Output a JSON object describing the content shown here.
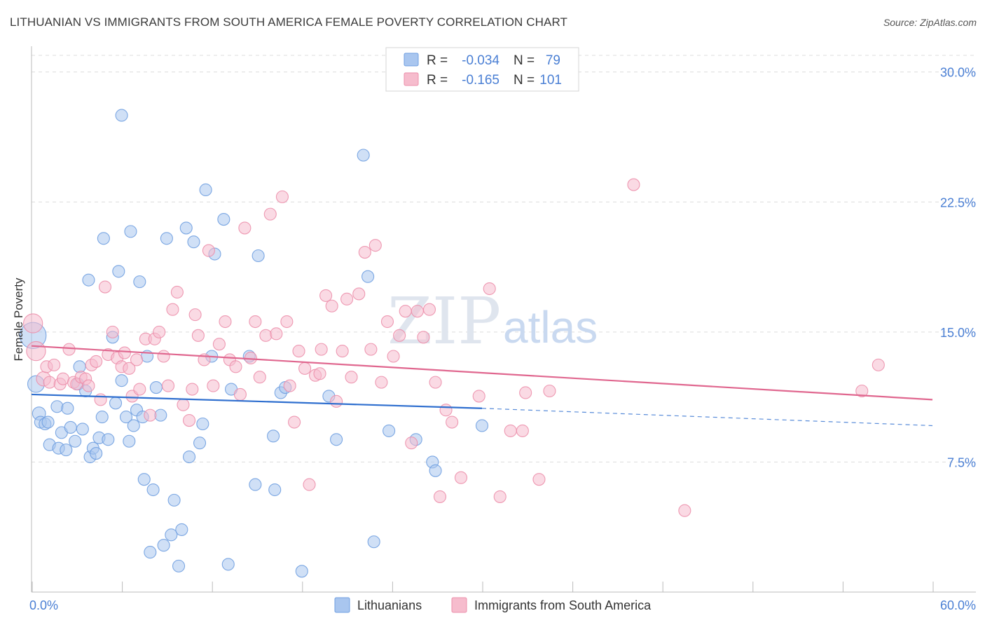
{
  "header": {
    "title": "LITHUANIAN VS IMMIGRANTS FROM SOUTH AMERICA FEMALE POVERTY CORRELATION CHART",
    "source": "Source: ZipAtlas.com"
  },
  "watermark": {
    "zip": "ZIP",
    "atlas": "atlas"
  },
  "colors": {
    "blue_fill": "#a9c6ef",
    "blue_stroke": "#6f9fe0",
    "blue_line": "#2f6fcf",
    "pink_fill": "#f6bccd",
    "pink_stroke": "#ec8fab",
    "pink_line": "#e0678f",
    "grid": "#dcdcdc",
    "tick_label": "#4a7fd4"
  },
  "legend": {
    "rows": [
      {
        "r_label": "R =",
        "r_value": "-0.034",
        "n_label": "N =",
        "n_value": "79"
      },
      {
        "r_label": "R =",
        "r_value": "-0.165",
        "n_label": "N =",
        "n_value": "101"
      }
    ]
  },
  "bottom_legend": {
    "items": [
      {
        "label": "Lithuanians"
      },
      {
        "label": "Immigrants from South America"
      }
    ]
  },
  "chart_data": {
    "type": "scatter",
    "title": "LITHUANIAN VS IMMIGRANTS FROM SOUTH AMERICA FEMALE POVERTY CORRELATION CHART",
    "xlabel": "",
    "ylabel": "Female Poverty",
    "xlim": [
      0,
      60
    ],
    "ylim": [
      0,
      31
    ],
    "x_tick_labels": [
      "0.0%",
      "60.0%"
    ],
    "y_ticks": [
      7.5,
      15.0,
      22.5,
      30.0
    ],
    "y_tick_labels": [
      "7.5%",
      "15.0%",
      "22.5%",
      "30.0%"
    ],
    "grid": "horizontal dashed",
    "legend_position": "top-center",
    "series": [
      {
        "name": "Lithuanians",
        "r": -0.034,
        "n": 79,
        "trend": {
          "x0": 0,
          "y0": 11.4,
          "x1": 30,
          "y1": 10.6,
          "dashed_to_x": 60,
          "dashed_to_y": 9.6
        },
        "points": [
          [
            0.1,
            14.8,
            2.2
          ],
          [
            0.3,
            12.0,
            1.4
          ],
          [
            0.5,
            10.3,
            1.1
          ],
          [
            0.6,
            9.8,
            1
          ],
          [
            0.9,
            9.7,
            1
          ],
          [
            1.1,
            9.8,
            1
          ],
          [
            1.2,
            8.5,
            1
          ],
          [
            1.7,
            10.7,
            1
          ],
          [
            1.8,
            8.3,
            1
          ],
          [
            2.0,
            9.2,
            1
          ],
          [
            2.3,
            8.2,
            1
          ],
          [
            2.4,
            10.6,
            1
          ],
          [
            2.6,
            9.5,
            1
          ],
          [
            2.9,
            8.7,
            1
          ],
          [
            3.1,
            12.0,
            1
          ],
          [
            3.2,
            13.0,
            1
          ],
          [
            3.4,
            9.4,
            1
          ],
          [
            3.6,
            11.6,
            1
          ],
          [
            3.8,
            18.0,
            1
          ],
          [
            3.9,
            7.8,
            1
          ],
          [
            4.1,
            8.3,
            1
          ],
          [
            4.3,
            8.0,
            1
          ],
          [
            4.5,
            8.9,
            1
          ],
          [
            4.7,
            10.1,
            1
          ],
          [
            4.8,
            20.4,
            1
          ],
          [
            5.1,
            8.8,
            1
          ],
          [
            5.4,
            14.7,
            1
          ],
          [
            5.6,
            10.9,
            1
          ],
          [
            5.8,
            18.5,
            1
          ],
          [
            6.0,
            12.2,
            1
          ],
          [
            6.0,
            27.5,
            1
          ],
          [
            6.3,
            10.1,
            1
          ],
          [
            6.5,
            8.7,
            1
          ],
          [
            6.6,
            20.8,
            1
          ],
          [
            6.8,
            9.6,
            1
          ],
          [
            7.0,
            10.5,
            1
          ],
          [
            7.2,
            17.9,
            1
          ],
          [
            7.4,
            10.1,
            1
          ],
          [
            7.5,
            6.5,
            1
          ],
          [
            7.7,
            13.6,
            1
          ],
          [
            7.9,
            2.3,
            1
          ],
          [
            8.1,
            5.9,
            1
          ],
          [
            8.3,
            11.8,
            1
          ],
          [
            8.6,
            10.2,
            1
          ],
          [
            8.8,
            2.7,
            1
          ],
          [
            9.0,
            20.4,
            1
          ],
          [
            9.3,
            3.3,
            1
          ],
          [
            9.5,
            5.3,
            1
          ],
          [
            9.8,
            1.5,
            1
          ],
          [
            10.0,
            3.6,
            1
          ],
          [
            10.3,
            21.0,
            1
          ],
          [
            10.5,
            7.8,
            1
          ],
          [
            10.8,
            20.2,
            1
          ],
          [
            11.2,
            8.6,
            1
          ],
          [
            11.4,
            9.7,
            1
          ],
          [
            11.6,
            23.2,
            1
          ],
          [
            12.0,
            13.6,
            1
          ],
          [
            12.2,
            19.5,
            1
          ],
          [
            12.8,
            21.5,
            1
          ],
          [
            13.1,
            1.6,
            1
          ],
          [
            13.3,
            11.7,
            1
          ],
          [
            14.5,
            13.6,
            1
          ],
          [
            14.9,
            6.2,
            1
          ],
          [
            15.1,
            19.4,
            1
          ],
          [
            16.1,
            9.0,
            1
          ],
          [
            16.2,
            5.9,
            1
          ],
          [
            16.6,
            11.5,
            1
          ],
          [
            16.9,
            11.8,
            1
          ],
          [
            18.0,
            1.2,
            1
          ],
          [
            19.8,
            11.3,
            1
          ],
          [
            20.3,
            8.8,
            1
          ],
          [
            22.1,
            25.2,
            1
          ],
          [
            22.4,
            18.2,
            1
          ],
          [
            22.8,
            2.9,
            1
          ],
          [
            23.8,
            9.3,
            1
          ],
          [
            25.6,
            8.8,
            1
          ],
          [
            26.7,
            7.5,
            1
          ],
          [
            26.9,
            7.0,
            1
          ],
          [
            30.0,
            9.6,
            1
          ]
        ]
      },
      {
        "name": "Immigrants from South America",
        "r": -0.165,
        "n": 101,
        "trend": {
          "x0": 0,
          "y0": 14.2,
          "x1": 60,
          "y1": 11.1
        },
        "points": [
          [
            0.1,
            15.5,
            1.6
          ],
          [
            0.3,
            13.9,
            1.6
          ],
          [
            0.8,
            12.3,
            1.2
          ],
          [
            1.0,
            13.0,
            1
          ],
          [
            1.2,
            12.1,
            1
          ],
          [
            1.5,
            13.1,
            1
          ],
          [
            1.9,
            12.0,
            1
          ],
          [
            2.1,
            12.3,
            1
          ],
          [
            2.5,
            14.0,
            1
          ],
          [
            2.8,
            12.1,
            1
          ],
          [
            3.0,
            12.0,
            1
          ],
          [
            3.3,
            12.4,
            1
          ],
          [
            3.6,
            12.3,
            1
          ],
          [
            3.8,
            11.9,
            1
          ],
          [
            4.0,
            13.1,
            1
          ],
          [
            4.3,
            13.3,
            1
          ],
          [
            4.6,
            11.1,
            1
          ],
          [
            4.9,
            17.6,
            1
          ],
          [
            5.1,
            13.7,
            1
          ],
          [
            5.4,
            15.0,
            1
          ],
          [
            5.7,
            13.5,
            1
          ],
          [
            6.0,
            13.0,
            1
          ],
          [
            6.2,
            13.8,
            1
          ],
          [
            6.5,
            12.9,
            1
          ],
          [
            6.7,
            11.3,
            1
          ],
          [
            7.0,
            13.4,
            1
          ],
          [
            7.2,
            11.7,
            1
          ],
          [
            7.6,
            14.6,
            1
          ],
          [
            7.9,
            10.2,
            1
          ],
          [
            8.2,
            14.6,
            1
          ],
          [
            8.5,
            15.0,
            1
          ],
          [
            8.8,
            13.6,
            1
          ],
          [
            9.1,
            11.9,
            1
          ],
          [
            9.4,
            16.3,
            1
          ],
          [
            9.7,
            17.3,
            1
          ],
          [
            10.1,
            10.8,
            1
          ],
          [
            10.5,
            9.9,
            1
          ],
          [
            10.7,
            11.7,
            1
          ],
          [
            11.1,
            14.8,
            1
          ],
          [
            11.5,
            13.4,
            1
          ],
          [
            11.8,
            19.7,
            1
          ],
          [
            12.1,
            11.9,
            1
          ],
          [
            12.5,
            14.3,
            1
          ],
          [
            12.9,
            15.6,
            1
          ],
          [
            13.2,
            13.4,
            1
          ],
          [
            13.6,
            13.0,
            1
          ],
          [
            13.9,
            11.4,
            1
          ],
          [
            14.2,
            21.0,
            1
          ],
          [
            14.6,
            13.5,
            1
          ],
          [
            14.9,
            15.6,
            1
          ],
          [
            15.2,
            12.4,
            1
          ],
          [
            15.6,
            14.8,
            1
          ],
          [
            15.9,
            21.8,
            1
          ],
          [
            16.3,
            14.9,
            1
          ],
          [
            16.7,
            22.8,
            1
          ],
          [
            17.0,
            15.6,
            1
          ],
          [
            17.2,
            11.9,
            1
          ],
          [
            17.5,
            9.8,
            1
          ],
          [
            17.8,
            13.9,
            1
          ],
          [
            18.2,
            12.9,
            1
          ],
          [
            18.5,
            6.2,
            1
          ],
          [
            18.9,
            12.5,
            1
          ],
          [
            19.3,
            14.0,
            1
          ],
          [
            19.6,
            17.1,
            1
          ],
          [
            20.0,
            16.5,
            1
          ],
          [
            20.3,
            11.0,
            1
          ],
          [
            20.7,
            13.9,
            1
          ],
          [
            21.0,
            16.9,
            1
          ],
          [
            21.3,
            12.4,
            1
          ],
          [
            21.8,
            17.2,
            1
          ],
          [
            22.2,
            19.6,
            1
          ],
          [
            22.6,
            14.0,
            1
          ],
          [
            22.9,
            20.0,
            1
          ],
          [
            23.3,
            12.1,
            1
          ],
          [
            23.7,
            15.6,
            1
          ],
          [
            24.1,
            13.6,
            1
          ],
          [
            24.5,
            14.8,
            1
          ],
          [
            24.9,
            16.2,
            1
          ],
          [
            25.3,
            8.6,
            1
          ],
          [
            25.7,
            16.2,
            1
          ],
          [
            26.1,
            14.7,
            1
          ],
          [
            26.5,
            16.3,
            1
          ],
          [
            26.9,
            12.1,
            1
          ],
          [
            27.2,
            5.5,
            1
          ],
          [
            27.6,
            10.5,
            1
          ],
          [
            28.0,
            9.8,
            1
          ],
          [
            28.6,
            6.6,
            1
          ],
          [
            29.8,
            11.3,
            1
          ],
          [
            31.2,
            5.5,
            1
          ],
          [
            31.9,
            9.3,
            1
          ],
          [
            32.7,
            9.3,
            1
          ],
          [
            32.9,
            11.5,
            1
          ],
          [
            33.8,
            6.5,
            1
          ],
          [
            34.5,
            11.6,
            1
          ],
          [
            40.1,
            23.5,
            1
          ],
          [
            43.5,
            4.7,
            1
          ],
          [
            55.3,
            11.6,
            1
          ],
          [
            56.4,
            13.1,
            1
          ],
          [
            19.2,
            12.6,
            1
          ],
          [
            30.5,
            17.5,
            1
          ],
          [
            10.9,
            16.0,
            1
          ]
        ]
      }
    ]
  }
}
